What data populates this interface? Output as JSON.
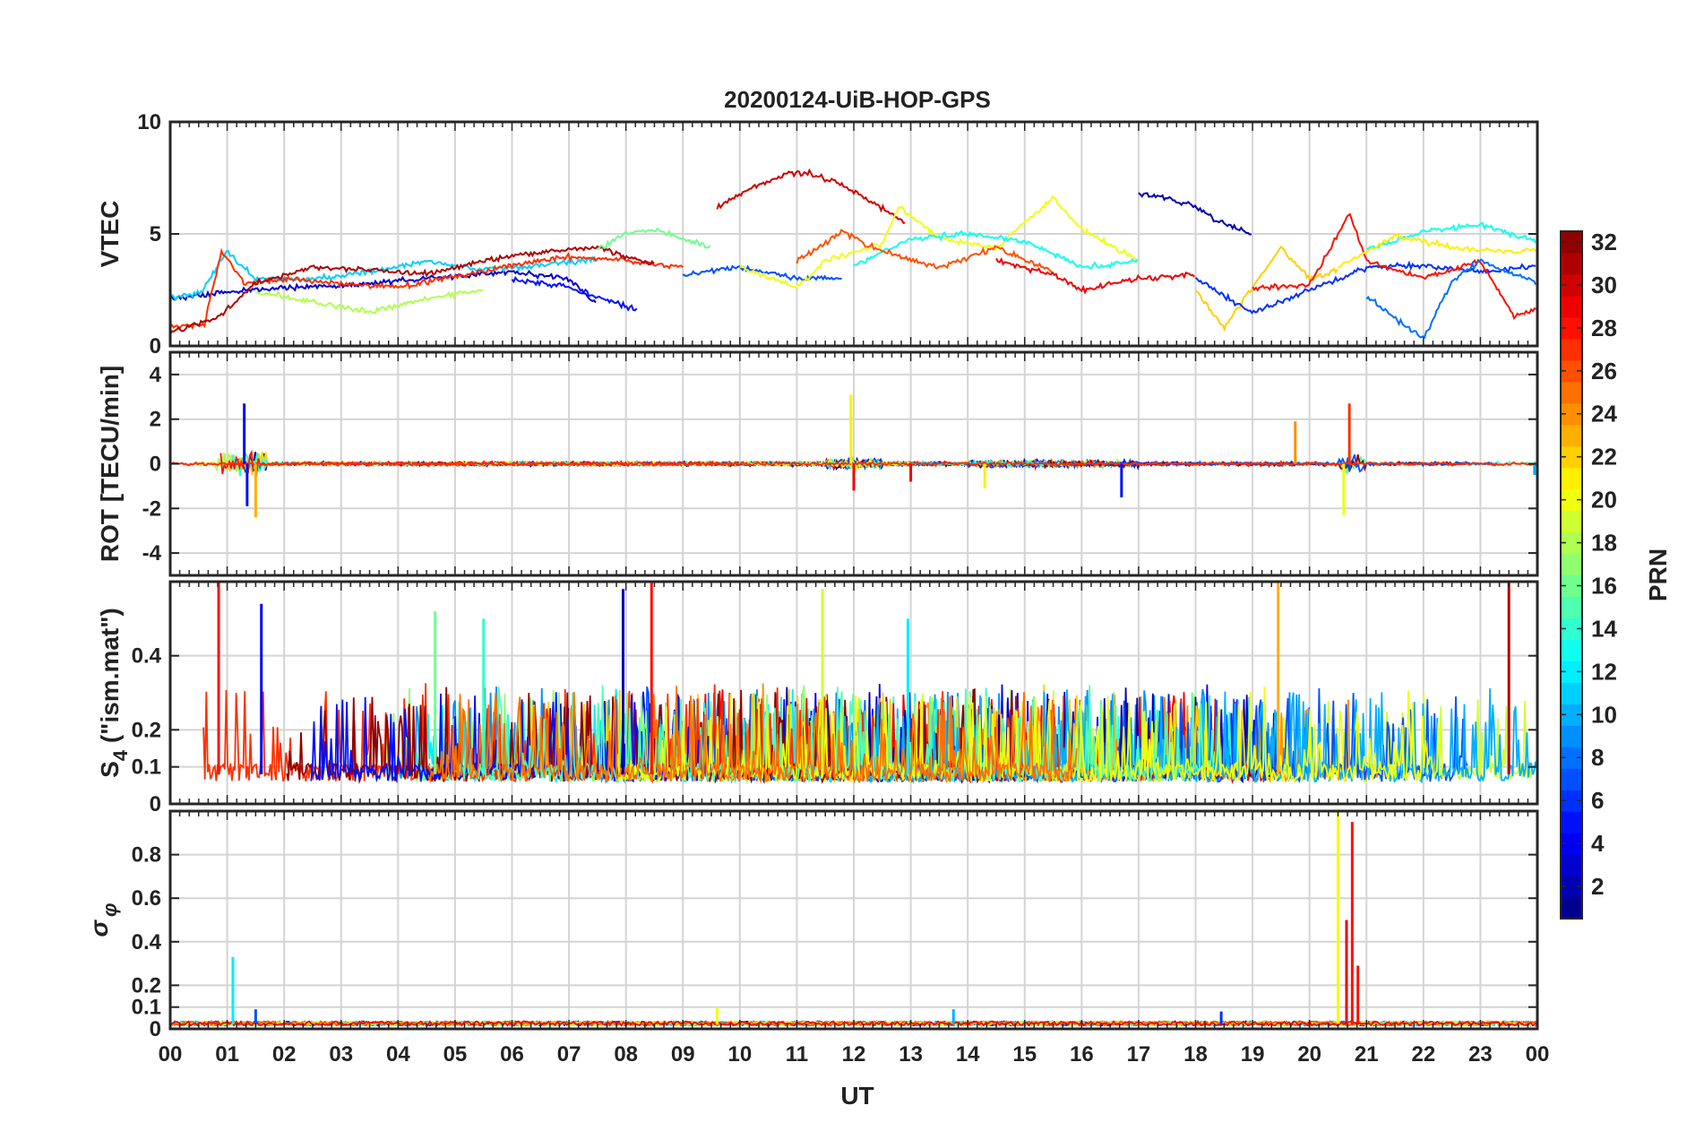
{
  "chart_data": {
    "type": "line",
    "title": "20200124-UiB-HOP-GPS",
    "xlabel": "UT",
    "x_tick_labels": [
      "00",
      "01",
      "02",
      "03",
      "04",
      "05",
      "06",
      "07",
      "08",
      "09",
      "10",
      "11",
      "12",
      "13",
      "14",
      "15",
      "16",
      "17",
      "18",
      "19",
      "20",
      "21",
      "22",
      "23",
      "00"
    ],
    "xlim": [
      0,
      24
    ],
    "grid": true,
    "colorbar": {
      "label": "PRN",
      "range": [
        1,
        32
      ],
      "tick_labels": [
        "2",
        "4",
        "6",
        "8",
        "10",
        "12",
        "14",
        "16",
        "18",
        "20",
        "22",
        "24",
        "26",
        "28",
        "30",
        "32"
      ],
      "colormap": "jet",
      "placement": "right"
    },
    "panels": [
      {
        "name": "vtec",
        "ylabel": "VTEC",
        "ylim": [
          0,
          10
        ],
        "yticks": [
          0,
          5,
          10
        ],
        "y_tick_labels": [
          "0",
          "5",
          "10"
        ],
        "series": [
          {
            "prn": 3,
            "x": [
              0.0,
              1.0,
              2.0,
              3.0,
              4.0,
              5.0,
              6.0,
              7.0,
              7.5
            ],
            "y": [
              2.1,
              2.4,
              2.6,
              2.7,
              2.9,
              3.1,
              3.3,
              3.0,
              1.8
            ]
          },
          {
            "prn": 11,
            "x": [
              0.0,
              0.5,
              1.0,
              1.5,
              2.5,
              3.5,
              4.5,
              5.5,
              6.5,
              7.5
            ],
            "y": [
              2.2,
              2.3,
              4.2,
              3.0,
              3.0,
              3.3,
              3.8,
              3.4,
              3.6,
              3.9
            ]
          },
          {
            "prn": 27,
            "x": [
              0.0,
              0.6,
              0.9,
              1.3,
              2.0,
              3.0,
              4.0,
              5.0,
              6.0,
              7.0,
              8.0,
              9.0
            ],
            "y": [
              0.8,
              1.0,
              4.2,
              2.8,
              3.0,
              2.8,
              2.6,
              3.1,
              3.6,
              4.0,
              3.8,
              3.5
            ]
          },
          {
            "prn": 31,
            "x": [
              0.0,
              0.8,
              1.5,
              2.5,
              3.5,
              4.5,
              5.5,
              6.5,
              7.5,
              8.5
            ],
            "y": [
              0.6,
              1.2,
              2.8,
              3.5,
              3.4,
              3.2,
              3.8,
              4.2,
              4.4,
              3.6
            ]
          },
          {
            "prn": 18,
            "x": [
              1.5,
              2.5,
              3.5,
              4.5,
              5.5
            ],
            "y": [
              2.4,
              2.0,
              1.5,
              2.1,
              2.5
            ]
          },
          {
            "prn": 16,
            "x": [
              7.5,
              8.0,
              8.5,
              9.0,
              9.5
            ],
            "y": [
              4.3,
              5.0,
              5.2,
              4.8,
              4.4
            ]
          },
          {
            "prn": 5,
            "x": [
              6.0,
              7.0,
              7.5,
              8.2
            ],
            "y": [
              3.0,
              2.6,
              2.2,
              1.6
            ]
          },
          {
            "prn": 30,
            "x": [
              9.6,
              10.2,
              10.8,
              11.2,
              11.8,
              12.4,
              12.9
            ],
            "y": [
              6.2,
              7.0,
              7.7,
              7.7,
              7.2,
              6.3,
              5.5
            ]
          },
          {
            "prn": 7,
            "x": [
              9.0,
              10.0,
              11.0,
              11.8
            ],
            "y": [
              3.2,
              3.5,
              3.0,
              3.0
            ]
          },
          {
            "prn": 20,
            "x": [
              10.0,
              11.0,
              11.5,
              12.5,
              12.8,
              13.5,
              14.5,
              15.5,
              16.0,
              17.0
            ],
            "y": [
              3.5,
              2.6,
              3.8,
              4.6,
              6.2,
              4.8,
              4.4,
              6.6,
              5.2,
              3.8
            ]
          },
          {
            "prn": 13,
            "x": [
              12.0,
              13.0,
              14.0,
              15.0,
              16.0,
              17.0
            ],
            "y": [
              3.6,
              4.8,
              5.0,
              4.7,
              3.5,
              3.8
            ]
          },
          {
            "prn": 26,
            "x": [
              11.0,
              11.8,
              12.5,
              13.5,
              14.5,
              15.5
            ],
            "y": [
              3.8,
              5.1,
              4.2,
              3.5,
              4.4,
              3.3
            ]
          },
          {
            "prn": 2,
            "x": [
              17.0,
              17.5,
              18.0,
              18.5,
              19.0
            ],
            "y": [
              6.8,
              6.6,
              6.2,
              5.4,
              5.0
            ]
          },
          {
            "prn": 29,
            "x": [
              14.5,
              15.5,
              16.0,
              17.0,
              18.0
            ],
            "y": [
              3.8,
              3.2,
              2.5,
              3.0,
              3.2
            ]
          },
          {
            "prn": 22,
            "x": [
              18.0,
              18.5,
              19.0,
              19.5,
              20.0,
              20.5
            ],
            "y": [
              2.5,
              0.8,
              2.6,
              4.4,
              3.0,
              3.4
            ]
          },
          {
            "prn": 6,
            "x": [
              18.0,
              19.0,
              20.0,
              21.0,
              22.0,
              23.0,
              24.0
            ],
            "y": [
              3.0,
              1.5,
              2.5,
              3.5,
              3.6,
              3.3,
              3.6
            ]
          },
          {
            "prn": 28,
            "x": [
              19.0,
              20.0,
              20.7,
              21.0,
              22.0,
              23.0,
              23.6,
              24.0
            ],
            "y": [
              2.6,
              2.7,
              5.9,
              3.8,
              3.0,
              3.8,
              1.3,
              1.7
            ]
          },
          {
            "prn": 13,
            "x": [
              21.0,
              22.0,
              23.0,
              24.0
            ],
            "y": [
              4.3,
              5.1,
              5.4,
              4.7
            ]
          },
          {
            "prn": 21,
            "x": [
              20.5,
              21.5,
              22.5,
              23.5,
              24.0
            ],
            "y": [
              3.5,
              4.9,
              4.4,
              4.2,
              4.3
            ]
          },
          {
            "prn": 8,
            "x": [
              21.0,
              22.0,
              22.5,
              23.0,
              24.0
            ],
            "y": [
              2.2,
              0.3,
              2.9,
              3.8,
              2.8
            ]
          }
        ]
      },
      {
        "name": "rot",
        "ylabel": "ROT [TECU/min]",
        "ylim": [
          -5,
          5
        ],
        "yticks": [
          -4,
          -2,
          0,
          2,
          4
        ],
        "y_tick_labels": [
          "-4",
          "-2",
          "0",
          "2",
          "4"
        ],
        "spikes": [
          {
            "prn": 4,
            "x": 1.3,
            "y": 2.7
          },
          {
            "prn": 23,
            "x": 1.5,
            "y": -2.4
          },
          {
            "prn": 5,
            "x": 1.35,
            "y": -1.9
          },
          {
            "prn": 21,
            "x": 11.95,
            "y": 3.1
          },
          {
            "prn": 29,
            "x": 12.0,
            "y": -1.2
          },
          {
            "prn": 21,
            "x": 14.3,
            "y": -1.1
          },
          {
            "prn": 5,
            "x": 16.7,
            "y": -1.5
          },
          {
            "prn": 24,
            "x": 19.75,
            "y": 1.9
          },
          {
            "prn": 27,
            "x": 20.7,
            "y": 2.7
          },
          {
            "prn": 20,
            "x": 20.6,
            "y": -2.3
          },
          {
            "prn": 29,
            "x": 13.0,
            "y": -0.8
          },
          {
            "prn": 10,
            "x": 23.95,
            "y": -0.5
          }
        ]
      },
      {
        "name": "s4",
        "ylabel": "S4 (\"ism.mat\")",
        "ylabel_parts": [
          "S",
          "4",
          " (\"ism.mat\")"
        ],
        "ylim": [
          0,
          0.6
        ],
        "yticks": [
          0,
          0.1,
          0.2,
          0.4
        ],
        "y_tick_labels": [
          "0",
          "0.1",
          "0.2",
          "0.4"
        ],
        "spikes": [
          {
            "prn": 28,
            "x": 0.85,
            "y": 0.6
          },
          {
            "prn": 4,
            "x": 1.6,
            "y": 0.54
          },
          {
            "prn": 2,
            "x": 7.95,
            "y": 0.58
          },
          {
            "prn": 28,
            "x": 8.45,
            "y": 0.6
          },
          {
            "prn": 19,
            "x": 11.45,
            "y": 0.58
          },
          {
            "prn": 12,
            "x": 12.95,
            "y": 0.5
          },
          {
            "prn": 23,
            "x": 19.45,
            "y": 0.6
          },
          {
            "prn": 31,
            "x": 23.5,
            "y": 0.6
          },
          {
            "prn": 14,
            "x": 5.5,
            "y": 0.5
          },
          {
            "prn": 16,
            "x": 4.65,
            "y": 0.52
          }
        ]
      },
      {
        "name": "sigma_phi",
        "ylabel": "σφ",
        "ylabel_parts": [
          "σ",
          "φ"
        ],
        "ylim": [
          0,
          1.0
        ],
        "yticks": [
          0,
          0.1,
          0.2,
          0.4,
          0.6,
          0.8
        ],
        "y_tick_labels": [
          "0",
          "0.1",
          "0.2",
          "0.4",
          "0.6",
          "0.8"
        ],
        "spikes": [
          {
            "prn": 12,
            "x": 1.1,
            "y": 0.33
          },
          {
            "prn": 20,
            "x": 20.5,
            "y": 1.0
          },
          {
            "prn": 29,
            "x": 20.65,
            "y": 0.5
          },
          {
            "prn": 28,
            "x": 20.75,
            "y": 0.95
          },
          {
            "prn": 28,
            "x": 20.85,
            "y": 0.29
          },
          {
            "prn": 7,
            "x": 1.5,
            "y": 0.09
          },
          {
            "prn": 20,
            "x": 9.6,
            "y": 0.1
          },
          {
            "prn": 10,
            "x": 13.75,
            "y": 0.09
          },
          {
            "prn": 6,
            "x": 18.45,
            "y": 0.08
          }
        ]
      }
    ]
  }
}
